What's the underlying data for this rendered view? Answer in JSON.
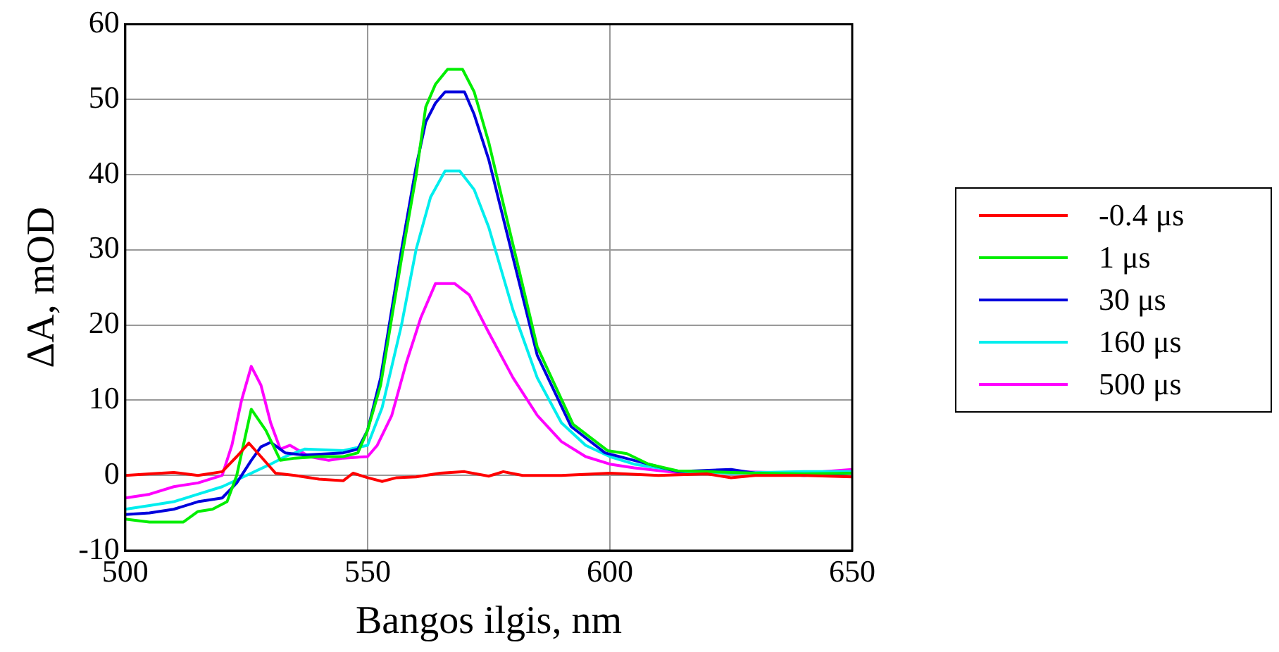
{
  "chart_data": {
    "type": "line",
    "xlabel": "Bangos ilgis, nm",
    "ylabel": "ΔA, mOD",
    "xlim": [
      500,
      650
    ],
    "xticks": [
      500,
      550,
      600,
      650
    ],
    "ylim": [
      -10,
      60
    ],
    "yticks": [
      -10,
      0,
      10,
      20,
      30,
      40,
      50,
      60
    ],
    "grid": true,
    "legend": "right",
    "marker": "none",
    "line_style": "solid",
    "series": [
      {
        "name": "-0.4 μs",
        "color": "#ff0000",
        "x": [
          500,
          505,
          510,
          515,
          520,
          523,
          525.5,
          528,
          531,
          535,
          540,
          545,
          547,
          550,
          553,
          556,
          560,
          565,
          570,
          575,
          578,
          582,
          590,
          600,
          610,
          620,
          625,
          630,
          640,
          650
        ],
        "values": [
          0,
          0.2,
          0.4,
          0,
          0.5,
          2.5,
          4.3,
          2.5,
          0.3,
          0,
          -0.5,
          -0.7,
          0.3,
          -0.3,
          -0.8,
          -0.3,
          -0.2,
          0.3,
          0.5,
          -0.1,
          0.5,
          0,
          0,
          0.3,
          0,
          0.2,
          -0.3,
          0,
          0,
          -0.2
        ]
      },
      {
        "name": "1 μs",
        "color": "#00ee00",
        "x": [
          500,
          505,
          512,
          515,
          518,
          521,
          523,
          526,
          529,
          532,
          535,
          540,
          545,
          548,
          550,
          552.7,
          557,
          560,
          562,
          564,
          566.5,
          569.6,
          572,
          575,
          580,
          585,
          592.4,
          599.5,
          603.5,
          608,
          614,
          620,
          630,
          640,
          650
        ],
        "values": [
          -5.8,
          -6.2,
          -6.2,
          -4.8,
          -4.5,
          -3.5,
          0,
          8.8,
          6,
          2,
          2.3,
          2.5,
          2.5,
          3,
          6,
          12,
          28.8,
          39.8,
          49,
          52,
          54,
          54,
          51,
          44.3,
          30.7,
          17.1,
          6.8,
          3.3,
          2.9,
          1.5,
          0.6,
          0.5,
          0.3,
          0.2,
          0.3
        ]
      },
      {
        "name": "30 μs",
        "color": "#0000dd",
        "x": [
          500,
          505,
          510,
          515,
          520,
          523,
          526,
          528,
          530,
          533,
          537,
          545,
          548,
          550,
          552.7,
          557,
          560,
          562,
          564,
          566,
          570,
          572,
          575,
          580,
          585,
          592,
          599,
          605,
          614,
          625,
          630,
          640,
          650
        ],
        "values": [
          -5.2,
          -5,
          -4.5,
          -3.5,
          -3,
          -1,
          2,
          3.8,
          4.4,
          3,
          2.7,
          3,
          3.5,
          6,
          13,
          30,
          41,
          47,
          49.5,
          51,
          51,
          48,
          42,
          29,
          16,
          6.5,
          3,
          2,
          0.5,
          0.8,
          0.3,
          0,
          0.3
        ]
      },
      {
        "name": "160 μs",
        "color": "#00eeee",
        "x": [
          500,
          505,
          510,
          515,
          520,
          525,
          530,
          533,
          537,
          545,
          550,
          553,
          557,
          560,
          563,
          566,
          569,
          572,
          575,
          580,
          585,
          590,
          595,
          600,
          605,
          615,
          625,
          640,
          650
        ],
        "values": [
          -4.5,
          -4,
          -3.5,
          -2.5,
          -1.5,
          0,
          1.5,
          2.5,
          3.5,
          3.3,
          4,
          9,
          20,
          30,
          37,
          40.5,
          40.5,
          38,
          33,
          22,
          13,
          7,
          4,
          2.5,
          1.5,
          0.5,
          0.3,
          0.5,
          0.5
        ]
      },
      {
        "name": "500 μs",
        "color": "#ff00ff",
        "x": [
          500,
          505,
          510,
          515,
          520,
          522,
          524,
          526,
          528,
          530,
          532,
          534,
          538,
          542,
          545,
          550,
          552,
          555,
          558,
          561,
          564,
          568,
          571,
          575,
          580,
          585,
          590,
          595,
          600,
          605,
          615,
          625,
          640,
          650
        ],
        "values": [
          -3,
          -2.5,
          -1.5,
          -1,
          0,
          4,
          10,
          14.5,
          12,
          7,
          3.5,
          4,
          2.5,
          2,
          2.3,
          2.5,
          4,
          8,
          15,
          21,
          25.5,
          25.5,
          24,
          19,
          13,
          8,
          4.5,
          2.5,
          1.5,
          1,
          0.3,
          0.5,
          0.3,
          0.8
        ]
      }
    ]
  }
}
